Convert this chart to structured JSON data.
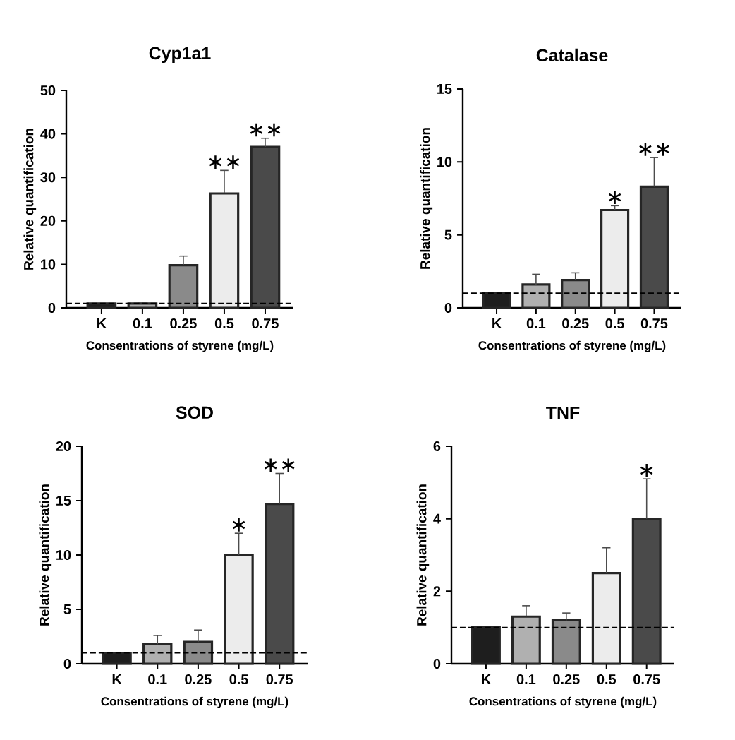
{
  "chart_data": [
    {
      "type": "bar",
      "title": "Cyp1a1",
      "xlabel": "Consentrations of styrene (mg/L)",
      "ylabel": "Relative quantification",
      "categories": [
        "K",
        "0.1",
        "0.25",
        "0.5",
        "0.75"
      ],
      "values": [
        1,
        1.0,
        9.8,
        26.3,
        37
      ],
      "colors": [
        "#1e1e1e",
        "#b0b0b0",
        "#8a8a8a",
        "#ececec",
        "#4a4a4a"
      ],
      "errors": [
        null,
        [
          1.0,
          1.3
        ],
        [
          9.8,
          11.9
        ],
        [
          26.3,
          31.6
        ],
        [
          37,
          39
        ]
      ],
      "ylim": [
        0,
        50
      ],
      "yticks": [
        0,
        10,
        20,
        30,
        40,
        50
      ],
      "ref_lines": [
        {
          "axis": "y",
          "value": 1,
          "line_style": "dashed"
        }
      ],
      "annotations": [
        {
          "text": "∗∗",
          "x": "0.5",
          "y": 26.3
        },
        {
          "text": "∗∗",
          "x": "0.75",
          "y": 37
        }
      ]
    },
    {
      "type": "bar",
      "title": "Catalase",
      "xlabel": "Consentrations of styrene (mg/L)",
      "ylabel": "Relative quantification",
      "categories": [
        "K",
        "0.1",
        "0.25",
        "0.5",
        "0.75"
      ],
      "values": [
        1,
        1.6,
        1.9,
        6.7,
        8.3
      ],
      "colors": [
        "#1e1e1e",
        "#b0b0b0",
        "#8a8a8a",
        "#ececec",
        "#4a4a4a"
      ],
      "errors": [
        null,
        [
          1.6,
          2.3
        ],
        [
          1.9,
          2.4
        ],
        [
          6.7,
          7.0
        ],
        [
          8.3,
          10.3
        ]
      ],
      "ylim": [
        0,
        15
      ],
      "yticks": [
        0,
        5,
        10,
        15
      ],
      "ref_lines": [
        {
          "axis": "y",
          "value": 1,
          "line_style": "dashed"
        }
      ],
      "annotations": [
        {
          "text": "∗",
          "x": "0.5",
          "y": 6.7
        },
        {
          "text": "∗∗",
          "x": "0.75",
          "y": 8.3
        }
      ]
    },
    {
      "type": "bar",
      "title": "SOD",
      "xlabel": "Consentrations of styrene (mg/L)",
      "ylabel": "Relative quantification",
      "categories": [
        "K",
        "0.1",
        "0.25",
        "0.5",
        "0.75"
      ],
      "values": [
        1,
        1.8,
        2.0,
        10.0,
        14.7
      ],
      "colors": [
        "#1e1e1e",
        "#b0b0b0",
        "#8a8a8a",
        "#ececec",
        "#4a4a4a"
      ],
      "errors": [
        null,
        [
          1.8,
          2.6
        ],
        [
          2.0,
          3.1
        ],
        [
          10.0,
          12.0
        ],
        [
          14.7,
          17.5
        ]
      ],
      "ylim": [
        0,
        20
      ],
      "yticks": [
        0,
        5,
        10,
        15,
        20
      ],
      "ref_lines": [
        {
          "axis": "y",
          "value": 1,
          "line_style": "dashed"
        }
      ],
      "annotations": [
        {
          "text": "∗",
          "x": "0.5",
          "y": 10.0
        },
        {
          "text": "∗∗",
          "x": "0.75",
          "y": 14.7
        }
      ]
    },
    {
      "type": "bar",
      "title": "TNF",
      "xlabel": "Consentrations of styrene (mg/L)",
      "ylabel": "Relative quantification",
      "categories": [
        "K",
        "0.1",
        "0.25",
        "0.5",
        "0.75"
      ],
      "values": [
        1,
        1.3,
        1.2,
        2.5,
        4.0
      ],
      "colors": [
        "#1e1e1e",
        "#b0b0b0",
        "#8a8a8a",
        "#ececec",
        "#4a4a4a"
      ],
      "errors": [
        null,
        [
          1.3,
          1.6
        ],
        [
          1.2,
          1.4
        ],
        [
          2.5,
          3.2
        ],
        [
          4.0,
          5.1
        ]
      ],
      "ylim": [
        0,
        6
      ],
      "yticks": [
        0,
        2,
        4,
        6
      ],
      "ref_lines": [
        {
          "axis": "y",
          "value": 1,
          "line_style": "dashed"
        }
      ],
      "annotations": [
        {
          "text": "∗",
          "x": "0.75",
          "y": 4.0
        }
      ]
    }
  ]
}
